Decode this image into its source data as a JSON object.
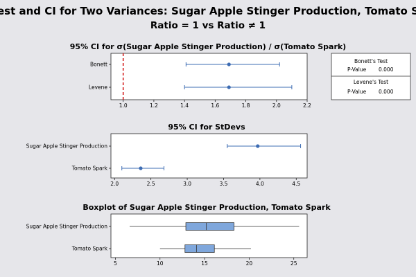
{
  "header": {
    "title": "est and CI for Two Variances: Sugar Apple Stinger Production, Tomato Spark",
    "subtitle": "Ratio = 1 vs Ratio ≠ 1"
  },
  "stats_box": {
    "bonett": {
      "title": "Bonett's Test",
      "label": "P-Value",
      "value": "0.000"
    },
    "levene": {
      "title": "Levene's Test",
      "label": "P-Value",
      "value": "0.000"
    }
  },
  "colors": {
    "series": "#3d6cb3",
    "reference": "#d42020",
    "box_fill": "#7fa7dc"
  },
  "chart_data": [
    {
      "type": "interval",
      "title": "95% CI for σ(Sugar Apple Stinger Production) / σ(Tomato Spark)",
      "categories": [
        "Bonett",
        "Levene"
      ],
      "series": [
        {
          "label": "Bonett",
          "estimate": 1.69,
          "lower": 1.41,
          "upper": 2.02
        },
        {
          "label": "Levene",
          "estimate": 1.69,
          "lower": 1.4,
          "upper": 2.1
        }
      ],
      "reference_line": 1.0,
      "xlim": [
        0.92,
        2.2
      ],
      "xticks": [
        1.0,
        1.2,
        1.4,
        1.6,
        1.8,
        2.0,
        2.2
      ],
      "xticklabels": [
        "1.0",
        "1.2",
        "1.4",
        "1.6",
        "1.8",
        "2.0",
        "2.2"
      ]
    },
    {
      "type": "interval",
      "title": "95% CI for StDevs",
      "categories": [
        "Sugar Apple Stinger Production",
        "Tomato Spark"
      ],
      "series": [
        {
          "label": "Sugar Apple Stinger Production",
          "estimate": 3.97,
          "lower": 3.55,
          "upper": 4.56
        },
        {
          "label": "Tomato Spark",
          "estimate": 2.36,
          "lower": 2.1,
          "upper": 2.68
        }
      ],
      "xlim": [
        1.95,
        4.65
      ],
      "xticks": [
        2.0,
        2.5,
        3.0,
        3.5,
        4.0,
        4.5
      ],
      "xticklabels": [
        "2.0",
        "2.5",
        "3.0",
        "3.5",
        "4.0",
        "4.5"
      ]
    },
    {
      "type": "boxplot",
      "title": "Boxplot of Sugar Apple Stinger Production, Tomato Spark",
      "categories": [
        "Sugar Apple Stinger Production",
        "Tomato Spark"
      ],
      "series": [
        {
          "label": "Sugar Apple Stinger Production",
          "min": 6.6,
          "q1": 12.9,
          "median": 15.2,
          "q3": 18.3,
          "max": 25.6
        },
        {
          "label": "Tomato Spark",
          "min": 10.0,
          "q1": 12.8,
          "median": 14.1,
          "q3": 16.1,
          "max": 20.2
        }
      ],
      "xlim": [
        4.5,
        26.5
      ],
      "xticks": [
        5,
        10,
        15,
        20,
        25
      ],
      "xticklabels": [
        "5",
        "10",
        "15",
        "20",
        "25"
      ]
    }
  ]
}
